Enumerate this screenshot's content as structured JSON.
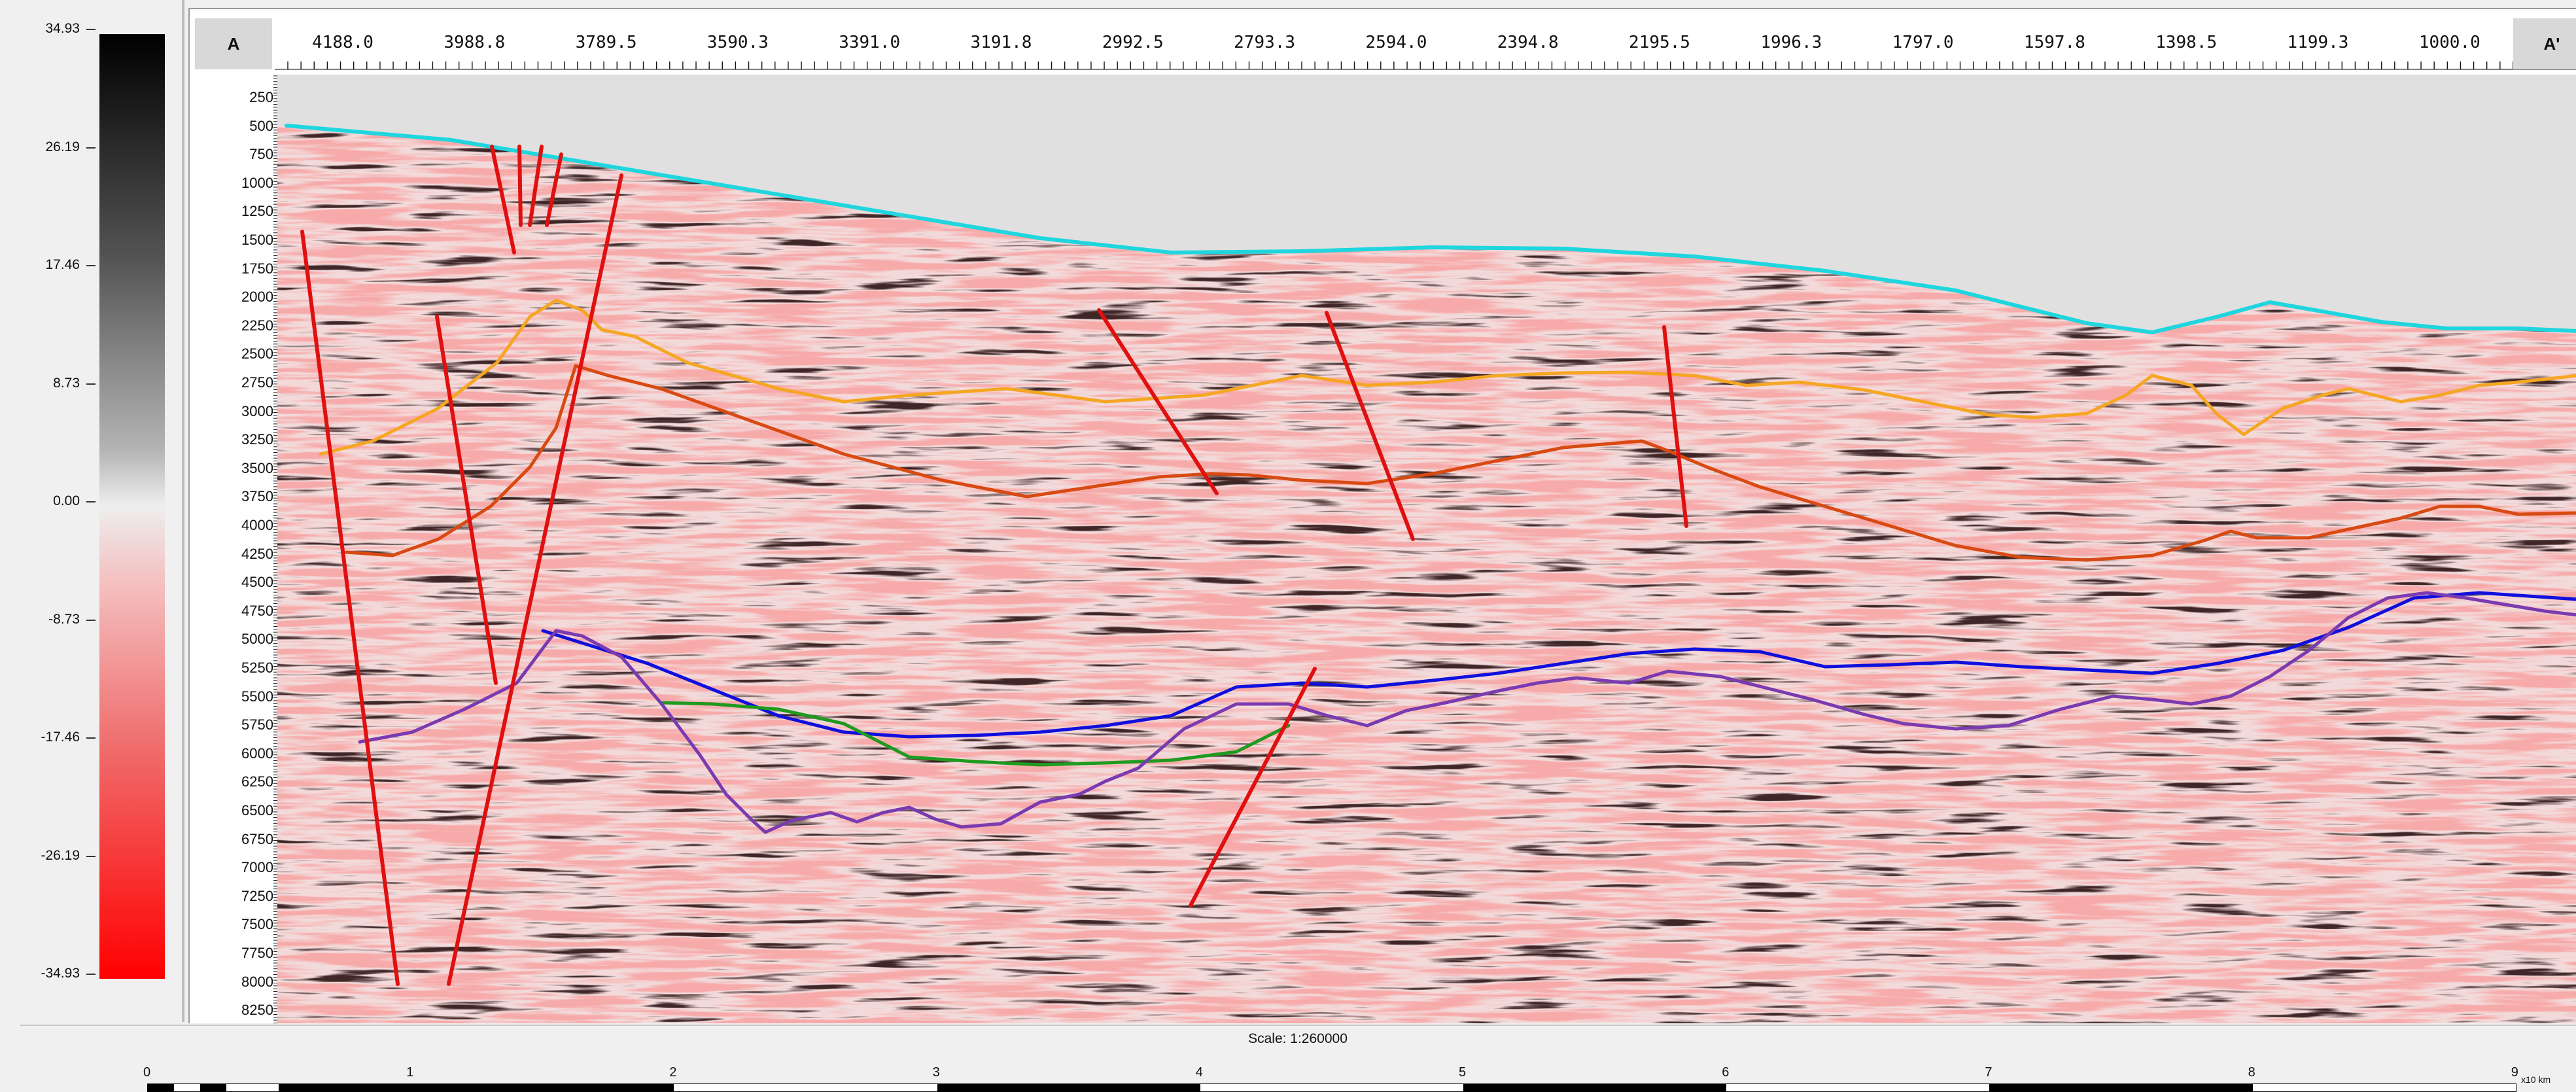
{
  "colorbar": {
    "ticks": [
      "34.93",
      "26.19",
      "17.46",
      "8.73",
      "0.00",
      "-8.73",
      "-17.46",
      "-26.19",
      "-34.93"
    ],
    "colors": {
      "max": "#000000",
      "zero": "#eeeeee",
      "min": "#ff0000"
    }
  },
  "section": {
    "start_label": "A",
    "end_label": "A'",
    "x_ticks": [
      "4188.0",
      "3988.8",
      "3789.5",
      "3590.3",
      "3391.0",
      "3191.8",
      "2992.5",
      "2793.3",
      "2594.0",
      "2394.8",
      "2195.5",
      "1996.3",
      "1797.0",
      "1597.8",
      "1398.5",
      "1199.3",
      "1000.0"
    ],
    "y_ticks": [
      "250",
      "500",
      "750",
      "1000",
      "1250",
      "1500",
      "1750",
      "2000",
      "2250",
      "2500",
      "2750",
      "3000",
      "3250",
      "3500",
      "3750",
      "4000",
      "4250",
      "4500",
      "4750",
      "5000",
      "5250",
      "5500",
      "5750",
      "6000",
      "6250",
      "6500",
      "6750",
      "7000",
      "7250",
      "7500",
      "7750",
      "8000",
      "8250"
    ]
  },
  "horizons": [
    {
      "color": "#1fd6de",
      "name": ""
    },
    {
      "color": "#f5a623",
      "name": ""
    },
    {
      "color": "#d84a12",
      "name": ""
    },
    {
      "color": "#1010dd",
      "name": ""
    },
    {
      "color": "#1f9a1f",
      "name": ""
    },
    {
      "color": "#7a3ab0",
      "name": ""
    }
  ],
  "faults": {
    "color": "#e01010",
    "count": 11
  },
  "scale": {
    "title": "Scale: 1:260000",
    "ticks": [
      "0",
      "1",
      "2",
      "3",
      "4",
      "5",
      "6",
      "7",
      "8",
      "9"
    ],
    "unit": "x10 km"
  }
}
